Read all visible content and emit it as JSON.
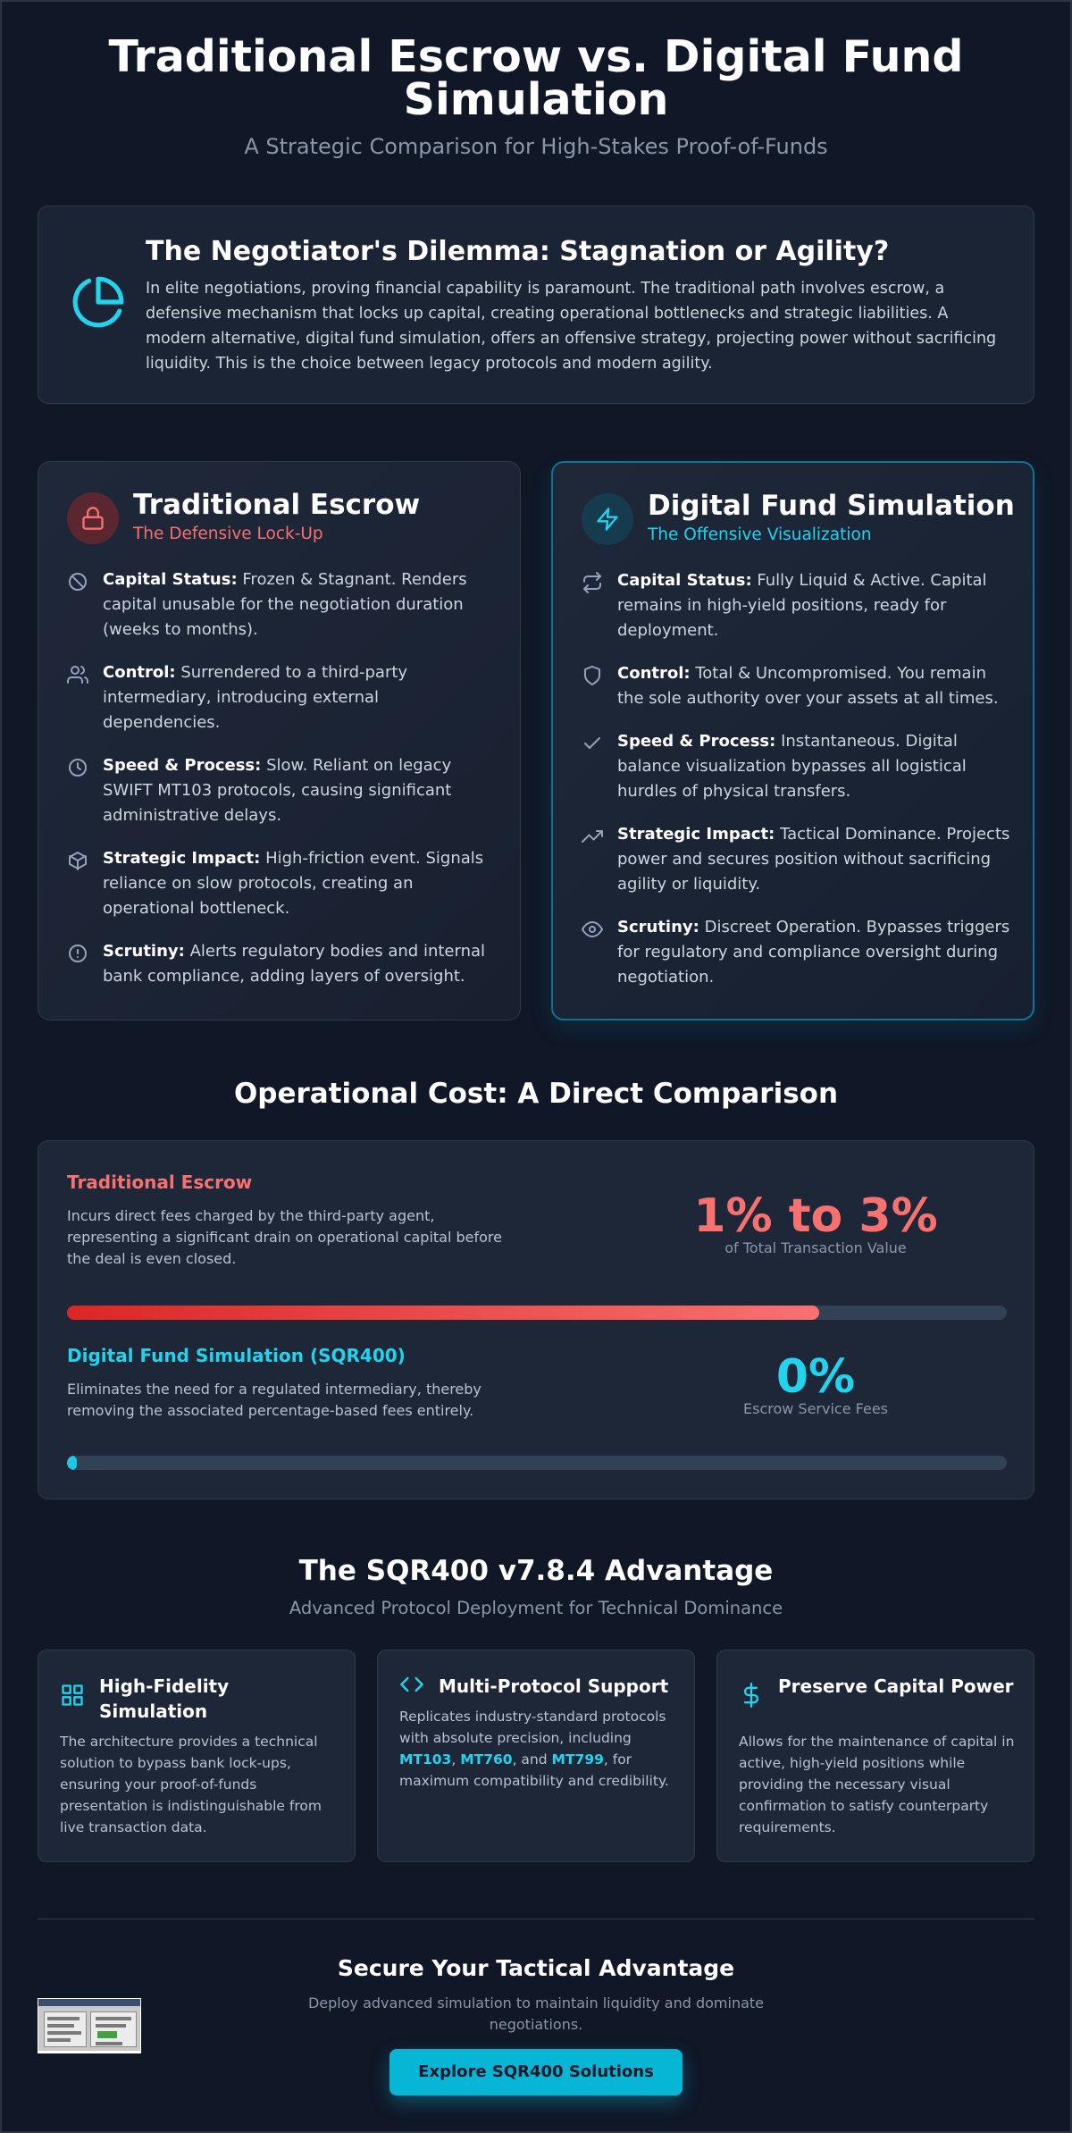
{
  "header": {
    "title": "Traditional Escrow vs. Digital Fund Simulation",
    "subtitle": "A Strategic Comparison for High-Stakes Proof-of-Funds"
  },
  "intro": {
    "icon": "pie-chart-icon",
    "title": "The Negotiator's Dilemma: Stagnation or Agility?",
    "text": "In elite negotiations, proving financial capability is paramount. The traditional path involves escrow, a defensive mechanism that locks up capital, creating operational bottlenecks and strategic liabilities. A modern alternative, digital fund simulation, offers an offensive strategy, projecting power without sacrificing liquidity. This is the choice between legacy protocols and modern agility."
  },
  "escrow_card": {
    "icon": "lock-icon",
    "title": "Traditional Escrow",
    "subtitle": "The Defensive Lock-Up",
    "features": [
      {
        "icon": "ban-icon",
        "label": "Capital Status:",
        "text": "Frozen & Stagnant. Renders capital unusable for the negotiation duration (weeks to months)."
      },
      {
        "icon": "users-icon",
        "label": "Control:",
        "text": "Surrendered to a third-party intermediary, introducing external dependencies."
      },
      {
        "icon": "clock-icon",
        "label": "Speed & Process:",
        "text": "Slow. Reliant on legacy SWIFT MT103 protocols, causing significant administrative delays."
      },
      {
        "icon": "box-icon",
        "label": "Strategic Impact:",
        "text": "High-friction event. Signals reliance on slow protocols, creating an operational bottleneck."
      },
      {
        "icon": "alert-icon",
        "label": "Scrutiny:",
        "text": "Alerts regulatory bodies and internal bank compliance, adding layers of oversight."
      }
    ]
  },
  "digital_card": {
    "icon": "zap-icon",
    "title": "Digital Fund Simulation",
    "subtitle": "The Offensive Visualization",
    "features": [
      {
        "icon": "repeat-icon",
        "label": "Capital Status:",
        "text": "Fully Liquid & Active. Capital remains in high-yield positions, ready for deployment."
      },
      {
        "icon": "shield-icon",
        "label": "Control:",
        "text": "Total & Uncompromised. You remain the sole authority over your assets at all times."
      },
      {
        "icon": "check-icon",
        "label": "Speed & Process:",
        "text": "Instantaneous. Digital balance visualization bypasses all logistical hurdles of physical transfers."
      },
      {
        "icon": "trending-up-icon",
        "label": "Strategic Impact:",
        "text": "Tactical Dominance. Projects power and secures position without sacrificing agility or liquidity."
      },
      {
        "icon": "eye-icon",
        "label": "Scrutiny:",
        "text": "Discreet Operation. Bypasses triggers for regulatory and compliance oversight during negotiation."
      }
    ]
  },
  "cost": {
    "title": "Operational Cost: A Direct Comparison",
    "escrow": {
      "heading": "Traditional Escrow",
      "description": "Incurs direct fees charged by the third-party agent, representing a significant drain on operational capital before the deal is even closed.",
      "value": "1% to 3%",
      "caption": "of Total Transaction Value",
      "bar_fraction": 0.8
    },
    "digital": {
      "heading": "Digital Fund Simulation (SQR400)",
      "description": "Eliminates the need for a regulated intermediary, thereby removing the associated percentage-based fees entirely.",
      "value": "0%",
      "caption": "Escrow Service Fees",
      "bar_fraction": 0.01
    }
  },
  "advantage": {
    "title": "The SQR400 v7.8.4 Advantage",
    "subtitle": "Advanced Protocol Deployment for Technical Dominance",
    "tiles": [
      {
        "icon": "grid-icon",
        "title": "High-Fidelity Simulation",
        "description": "The architecture provides a technical solution to bypass bank lock-ups, ensuring your proof-of-funds presentation is indistinguishable from live transaction data."
      },
      {
        "icon": "code-icon",
        "title": "Multi-Protocol Support",
        "desc_before": "Replicates industry-standard protocols with absolute precision, including ",
        "mt103": "MT103",
        "sep1": ", ",
        "mt760": "MT760",
        "sep2": ", and ",
        "mt799": "MT799",
        "desc_after": ", for maximum compatibility and credibility."
      },
      {
        "icon": "dollar-icon",
        "title": "Preserve Capital Power",
        "description": "Allows for the maintenance of capital in active, high-yield positions while providing the necessary visual confirmation to satisfy counterparty requirements."
      }
    ]
  },
  "footer": {
    "title": "Secure Your Tactical Advantage",
    "subtitle": "Deploy advanced simulation to maintain liquidity and dominate negotiations.",
    "cta_label": "Explore SQR400 Solutions"
  },
  "colors": {
    "background": "#101727",
    "card": "#1d2738",
    "accent_cyan": "#22d3ee",
    "accent_red": "#f87171",
    "cta": "#06b6d4"
  }
}
